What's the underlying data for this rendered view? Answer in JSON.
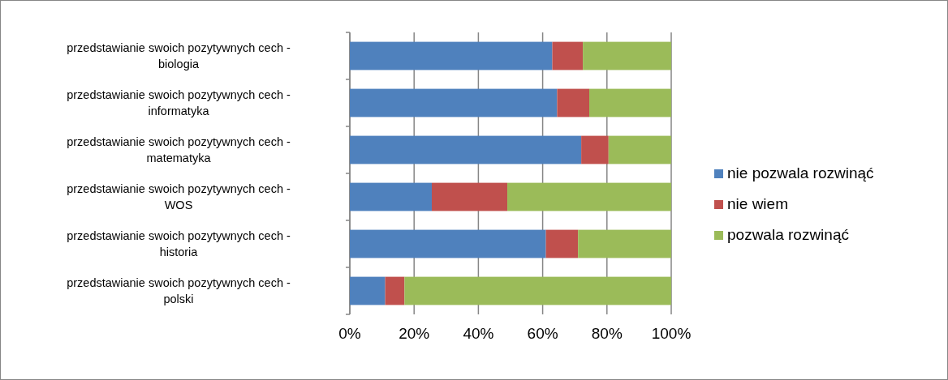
{
  "chart_data": {
    "type": "bar",
    "orientation": "horizontal",
    "stacked": true,
    "categories": [
      "przedstawianie swoich pozytywnych cech - biologia",
      "przedstawianie swoich pozytywnych cech - informatyka",
      "przedstawianie swoich pozytywnych cech - matematyka",
      "przedstawianie swoich pozytywnych cech - WOS",
      "przedstawianie swoich pozytywnych cech - historia",
      "przedstawianie swoich pozytywnych cech - polski"
    ],
    "series": [
      {
        "name": "nie pozwala rozwinąć",
        "color": "#4f81bd",
        "values": [
          63,
          64.5,
          72,
          25.5,
          61,
          11
        ]
      },
      {
        "name": "nie wiem",
        "color": "#c0504d",
        "values": [
          9.5,
          10,
          8.5,
          23.5,
          10,
          6
        ]
      },
      {
        "name": "pozwala rozwinąć",
        "color": "#9bbb59",
        "values": [
          27.5,
          25.5,
          19.5,
          51,
          29,
          83
        ]
      }
    ],
    "xlim": [
      0,
      100
    ],
    "xticks": [
      {
        "value": 0,
        "label": "0%"
      },
      {
        "value": 20,
        "label": "20%"
      },
      {
        "value": 40,
        "label": "40%"
      },
      {
        "value": 60,
        "label": "60%"
      },
      {
        "value": 80,
        "label": "80%"
      },
      {
        "value": 100,
        "label": "100%"
      }
    ],
    "grid": "x",
    "legend": "right"
  }
}
